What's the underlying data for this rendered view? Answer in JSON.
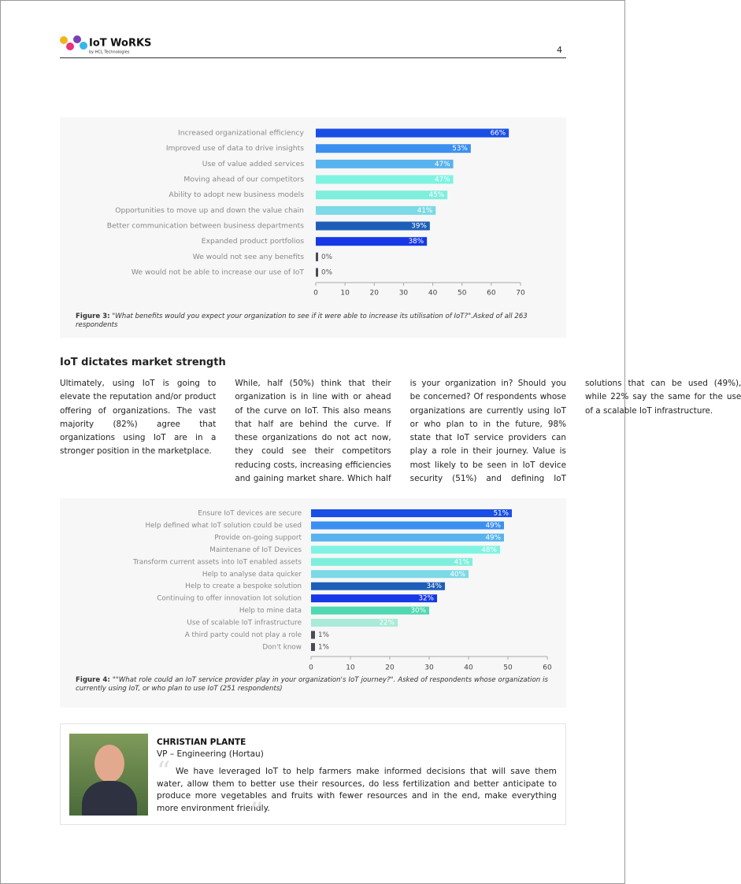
{
  "header": {
    "logo": "IoT WoRKS",
    "logo_sub": "by HCL Technologies",
    "page_number": "4"
  },
  "chart_data": [
    {
      "type": "hbar",
      "categories": [
        "Increased organizational efficiency",
        "Improved use of data to drive insights",
        "Use of value added services",
        "Moving ahead of our competitors",
        "Ability to adopt new business models",
        "Opportunities to move up and down the value chain",
        "Better communication between business departments",
        "Expanded product portfolios",
        "We would not see any benefits",
        "We would not be able to increase our use of IoT"
      ],
      "values": [
        66,
        53,
        47,
        47,
        45,
        41,
        39,
        38,
        0,
        0
      ],
      "value_labels": [
        "66%",
        "53%",
        "47%",
        "47%",
        "45%",
        "41%",
        "39%",
        "38%",
        "0%",
        "0%"
      ],
      "colors": [
        "#1a4fe6",
        "#3b8ff0",
        "#58b3ee",
        "#7ff3e2",
        "#7eefdc",
        "#7cd9e6",
        "#1d5fb8",
        "#1638e6",
        "#4a4a55",
        "#4a4a55"
      ],
      "xlim": [
        0,
        70
      ],
      "xticks": [
        0,
        10,
        20,
        30,
        40,
        50,
        60,
        70
      ],
      "caption_label": "Figure 3:",
      "caption": "\"What benefits would you expect your organization to see if it were able to increase its utilisation of IoT?\".Asked of all 263 respondents"
    },
    {
      "type": "hbar",
      "categories": [
        "Ensure IoT devices are secure",
        "Help defined what IoT solution could be used",
        "Provide on-going support",
        "Maintenane of IoT Devices",
        "Transform current assets into IoT enabled assets",
        "Help to analyse data quicker",
        "Help to create a bespoke solution",
        "Continuing to offer innovation Iot solution",
        "Help to mine data",
        "Use of scalable IoT infrastructure",
        "A third party could not play a role",
        "Don't know"
      ],
      "values": [
        51,
        49,
        49,
        48,
        41,
        40,
        34,
        32,
        30,
        22,
        1,
        1
      ],
      "value_labels": [
        "51%",
        "49%",
        "49%",
        "48%",
        "41%",
        "40%",
        "34%",
        "32%",
        "30%",
        "22%",
        "1%",
        "1%"
      ],
      "colors": [
        "#1a4fe6",
        "#3b8ff0",
        "#58b3ee",
        "#7ff3e2",
        "#7eefdc",
        "#7cd9e6",
        "#1d5fb8",
        "#1638e6",
        "#4fd8b2",
        "#a9ebd8",
        "#4a4a55",
        "#4a4a55"
      ],
      "xlim": [
        0,
        60
      ],
      "xticks": [
        0,
        10,
        20,
        30,
        40,
        50,
        60
      ],
      "caption_label": "Figure 4:",
      "caption": "\"\"What role could an IoT service provider play in your organization's IoT journey?\". Asked of respondents whose organization is currently using IoT, or who plan to use IoT (251 respondents)"
    }
  ],
  "section": {
    "heading": "IoT dictates market strength",
    "paragraphs": [
      "Ultimately, using IoT is going to elevate the reputation and/or product offering of organizations. The vast majority (82%) agree that organizations using IoT are in a stronger position in the marketplace.",
      "While, half (50%) think that their organization is in line with or ahead of the curve on IoT. This also means that half are behind the curve. If these organizations do not act now, they could see their competitors reducing costs, increasing efficiencies and gaining market share. Which half is your organization in? Should you be concerned? Of respondents whose organizations are currently using IoT or who plan to in the future, 98% state that IoT service providers can play a role in their journey. Value is most likely to be seen in IoT device security (51%) and defining IoT solutions that can be used (49%), while 22% say the same for the use of a scalable IoT infrastructure."
    ]
  },
  "quote": {
    "name": "CHRISTIAN PLANTE",
    "role": "VP – Engineering (Hortau)",
    "text": "We have leveraged IoT to help farmers make informed decisions that will save them water, allow them to better use their resources, do less fertilization and better anticipate to produce more vegetables and fruits with fewer resources and in the end, make everything more environment friendly."
  }
}
